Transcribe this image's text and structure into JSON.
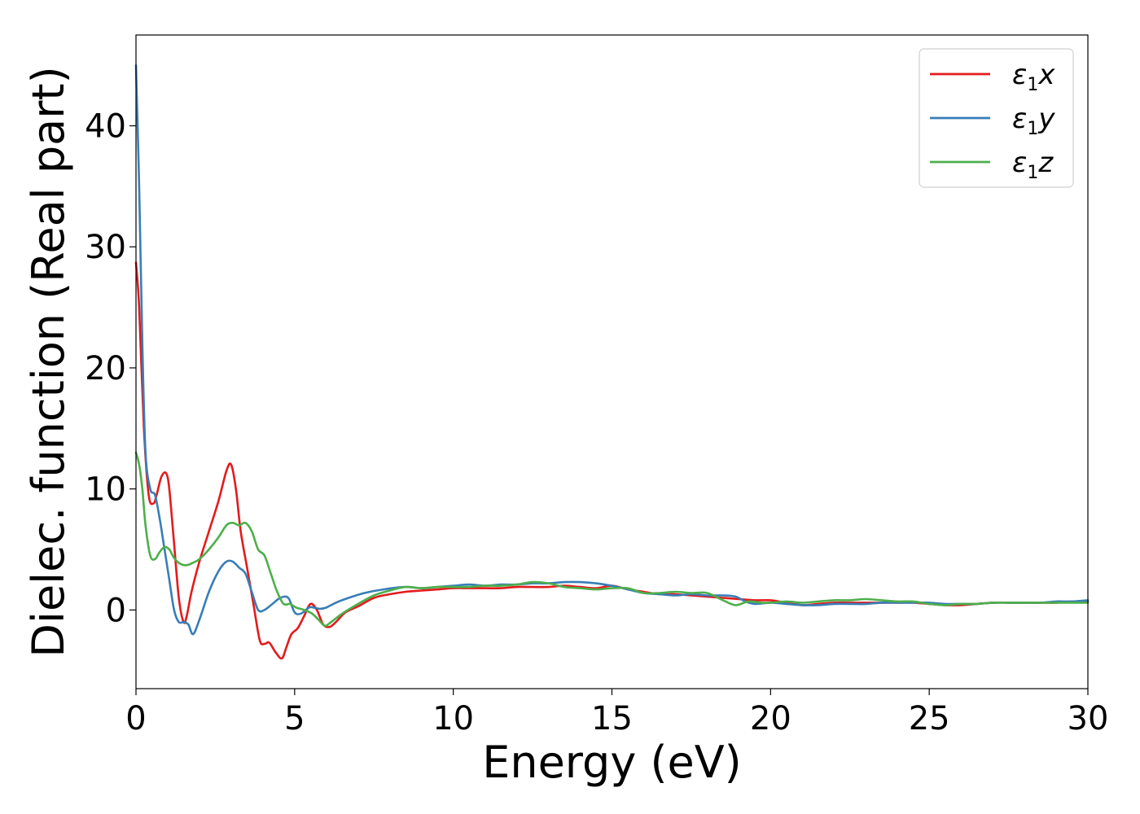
{
  "chart_data": {
    "type": "line",
    "xlabel": "Energy (eV)",
    "ylabel": "Dielec. function (Real part)",
    "xlim": [
      0,
      30
    ],
    "ylim": [
      -6.5,
      47.5
    ],
    "xticks": [
      0,
      5,
      10,
      15,
      20,
      25,
      30
    ],
    "yticks": [
      0,
      10,
      20,
      30,
      40
    ],
    "grid": false,
    "legend_position": "top-right",
    "series": [
      {
        "name": "ε1x",
        "legend": {
          "base": "ε",
          "sub": "1",
          "axis": "x"
        },
        "color": "#e41a1c",
        "x": [
          0,
          0.1,
          0.25,
          0.4,
          0.55,
          0.65,
          0.8,
          0.95,
          1.05,
          1.2,
          1.35,
          1.5,
          1.6,
          1.75,
          2.0,
          2.3,
          2.6,
          2.85,
          3.0,
          3.15,
          3.3,
          3.5,
          3.7,
          3.9,
          4.05,
          4.2,
          4.4,
          4.6,
          4.75,
          4.9,
          5.1,
          5.3,
          5.5,
          5.7,
          5.9,
          6.1,
          6.3,
          6.6,
          7.0,
          7.5,
          8.0,
          8.5,
          9.0,
          9.5,
          10.0,
          10.5,
          11.0,
          11.5,
          12.0,
          12.5,
          13.0,
          13.5,
          14.0,
          14.5,
          15.0,
          15.5,
          16.0,
          16.5,
          17.0,
          17.5,
          18.0,
          18.5,
          19.0,
          19.5,
          20.0,
          20.5,
          21.0,
          21.5,
          22.0,
          22.5,
          23.0,
          23.5,
          24.0,
          24.5,
          25.0,
          25.5,
          26.0,
          26.5,
          27.0,
          27.5,
          28.0,
          28.5,
          29.0,
          29.5,
          30.0
        ],
        "values": [
          28.7,
          25.0,
          15.0,
          9.5,
          8.8,
          9.5,
          11.0,
          11.3,
          10.0,
          5.5,
          1.0,
          -1.0,
          -0.5,
          1.5,
          4.0,
          6.5,
          9.0,
          11.5,
          12.0,
          10.0,
          6.5,
          3.5,
          0.5,
          -2.5,
          -2.8,
          -2.7,
          -3.5,
          -4.0,
          -3.0,
          -2.0,
          -1.5,
          -0.5,
          0.5,
          0.0,
          -1.2,
          -1.4,
          -1.0,
          -0.2,
          0.3,
          1.0,
          1.3,
          1.5,
          1.6,
          1.7,
          1.8,
          1.8,
          1.8,
          1.8,
          1.9,
          1.9,
          1.9,
          2.0,
          1.9,
          1.8,
          2.0,
          1.7,
          1.5,
          1.3,
          1.3,
          1.2,
          1.1,
          1.0,
          0.9,
          0.8,
          0.8,
          0.6,
          0.4,
          0.5,
          0.6,
          0.6,
          0.6,
          0.6,
          0.6,
          0.6,
          0.5,
          0.4,
          0.4,
          0.5,
          0.6,
          0.6,
          0.6,
          0.6,
          0.6,
          0.7,
          0.7
        ]
      },
      {
        "name": "ε1y",
        "legend": {
          "base": "ε",
          "sub": "1",
          "axis": "y"
        },
        "color": "#377eb8",
        "x": [
          0,
          0.1,
          0.2,
          0.3,
          0.45,
          0.6,
          0.75,
          0.9,
          1.05,
          1.2,
          1.35,
          1.5,
          1.65,
          1.8,
          2.0,
          2.3,
          2.6,
          2.85,
          3.05,
          3.25,
          3.45,
          3.65,
          3.85,
          4.05,
          4.3,
          4.55,
          4.8,
          5.0,
          5.2,
          5.45,
          5.6,
          5.8,
          6.0,
          6.3,
          6.7,
          7.2,
          7.8,
          8.5,
          9.0,
          9.5,
          10.0,
          10.5,
          11.0,
          11.5,
          12.0,
          12.5,
          13.0,
          13.5,
          14.0,
          14.5,
          15.0,
          15.5,
          16.0,
          16.5,
          17.0,
          17.5,
          18.0,
          18.5,
          18.9,
          19.2,
          19.5,
          20.0,
          20.5,
          21.0,
          21.5,
          22.0,
          22.5,
          23.0,
          23.5,
          24.0,
          24.5,
          25.0,
          25.5,
          26.0,
          26.5,
          27.0,
          27.5,
          28.0,
          28.5,
          29.0,
          29.5,
          30.0
        ],
        "values": [
          45.0,
          35.0,
          22.0,
          13.0,
          10.0,
          9.5,
          7.5,
          5.0,
          2.5,
          0.0,
          -1.0,
          -1.0,
          -1.2,
          -2.0,
          -0.8,
          1.5,
          3.2,
          4.0,
          4.0,
          3.5,
          3.0,
          1.5,
          0.0,
          0.0,
          0.5,
          1.0,
          1.0,
          -0.2,
          -0.3,
          0.2,
          0.2,
          0.1,
          0.2,
          0.6,
          1.0,
          1.4,
          1.7,
          1.9,
          1.8,
          1.9,
          2.0,
          2.1,
          2.0,
          2.1,
          2.1,
          2.2,
          2.2,
          2.3,
          2.3,
          2.2,
          2.0,
          1.7,
          1.4,
          1.3,
          1.2,
          1.3,
          1.2,
          1.2,
          1.1,
          0.7,
          0.5,
          0.6,
          0.5,
          0.4,
          0.4,
          0.5,
          0.5,
          0.5,
          0.6,
          0.6,
          0.6,
          0.6,
          0.5,
          0.5,
          0.5,
          0.6,
          0.6,
          0.6,
          0.6,
          0.7,
          0.7,
          0.8
        ]
      },
      {
        "name": "ε1z",
        "legend": {
          "base": "ε",
          "sub": "1",
          "axis": "z"
        },
        "color": "#4daf4a",
        "x": [
          0,
          0.1,
          0.2,
          0.3,
          0.45,
          0.6,
          0.75,
          0.9,
          1.05,
          1.2,
          1.4,
          1.6,
          1.8,
          2.0,
          2.3,
          2.6,
          2.85,
          3.05,
          3.25,
          3.45,
          3.65,
          3.85,
          4.05,
          4.25,
          4.45,
          4.65,
          4.85,
          5.05,
          5.3,
          5.55,
          5.75,
          5.95,
          6.15,
          6.5,
          7.0,
          7.5,
          8.0,
          8.5,
          9.0,
          9.5,
          10.0,
          10.5,
          11.0,
          11.5,
          12.0,
          12.5,
          13.0,
          13.5,
          14.0,
          14.5,
          15.0,
          15.5,
          16.0,
          16.5,
          17.0,
          17.5,
          18.0,
          18.5,
          18.9,
          19.3,
          19.7,
          20.0,
          20.5,
          21.0,
          21.5,
          22.0,
          22.5,
          23.0,
          23.5,
          24.0,
          24.5,
          25.0,
          25.5,
          26.0,
          26.5,
          27.0,
          27.5,
          28.0,
          28.5,
          29.0,
          29.5,
          30.0
        ],
        "values": [
          13.0,
          12.0,
          10.0,
          7.0,
          4.5,
          4.2,
          4.8,
          5.2,
          5.0,
          4.3,
          3.8,
          3.7,
          3.9,
          4.2,
          5.0,
          6.0,
          7.0,
          7.2,
          7.0,
          7.2,
          6.5,
          5.0,
          4.5,
          3.0,
          1.5,
          0.5,
          0.5,
          0.2,
          0.0,
          -0.3,
          -0.8,
          -1.3,
          -1.0,
          -0.3,
          0.5,
          1.2,
          1.6,
          1.9,
          1.8,
          1.9,
          1.9,
          1.9,
          2.0,
          2.0,
          2.1,
          2.3,
          2.2,
          1.9,
          1.8,
          1.7,
          1.8,
          1.8,
          1.4,
          1.4,
          1.5,
          1.4,
          1.4,
          0.8,
          0.4,
          0.7,
          0.6,
          0.6,
          0.7,
          0.6,
          0.7,
          0.8,
          0.8,
          0.9,
          0.8,
          0.7,
          0.7,
          0.5,
          0.4,
          0.5,
          0.5,
          0.6,
          0.6,
          0.6,
          0.6,
          0.6,
          0.6,
          0.6
        ]
      }
    ]
  }
}
